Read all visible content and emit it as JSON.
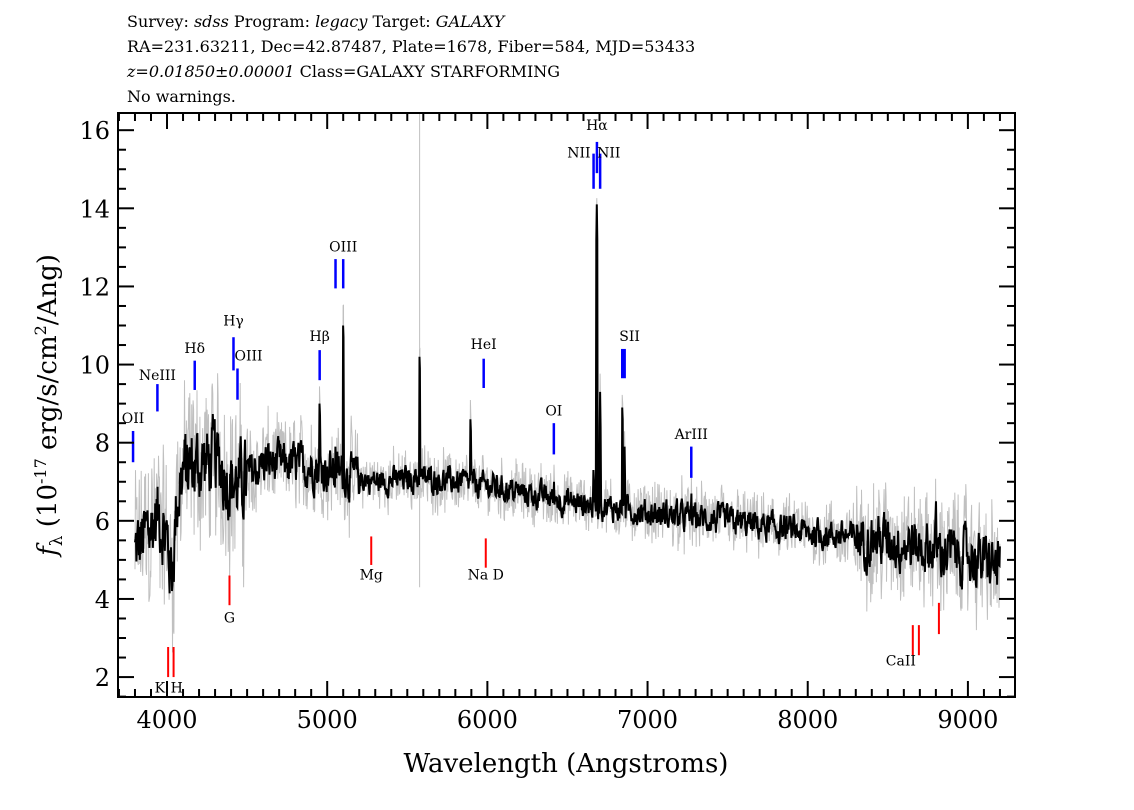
{
  "header": {
    "survey_label": "Survey:",
    "survey": "sdss",
    "program_label": "Program:",
    "program": "legacy",
    "target_label": "Target:",
    "target": "GALAXY",
    "line2": "RA=231.63211, Dec=42.87487, Plate=1678, Fiber=584, MJD=53433",
    "redshift": "z=0.01850±0.00001",
    "class": "Class=GALAXY STARFORMING",
    "warnings": "No warnings."
  },
  "chart_data": {
    "type": "line",
    "xlabel": "Wavelength (Angstroms)",
    "ylabel_main": "f",
    "ylabel_sub": "λ",
    "ylabel_rest_a": " (10",
    "ylabel_exp": "-17",
    "ylabel_rest_b": " erg/s/cm",
    "ylabel_exp2": "2",
    "ylabel_rest_c": "/Ang)",
    "xlim": [
      3694,
      9294
    ],
    "ylim": [
      1.49,
      16.44
    ],
    "xticks": [
      4000,
      5000,
      6000,
      7000,
      8000,
      9000
    ],
    "yticks": [
      2,
      4,
      6,
      8,
      10,
      12,
      14,
      16
    ],
    "wavelength_range": [
      3800,
      9200
    ],
    "sky_line": 5577,
    "colors": {
      "spectrum": "#000000",
      "error": "#c0c0c0",
      "emission": "#0000ff",
      "absorption": "#ff0000",
      "sky": "#c0c0c0"
    },
    "continuum": [
      [
        3800,
        5.2
      ],
      [
        3850,
        5.5
      ],
      [
        3950,
        6.2
      ],
      [
        4000,
        5.5
      ],
      [
        4030,
        4.6
      ],
      [
        4060,
        6.4
      ],
      [
        4100,
        7.3
      ],
      [
        4300,
        7.6
      ],
      [
        4400,
        7.0
      ],
      [
        4450,
        6.9
      ],
      [
        4600,
        7.5
      ],
      [
        4900,
        7.4
      ],
      [
        5100,
        7.2
      ],
      [
        5300,
        7.0
      ],
      [
        5600,
        7.1
      ],
      [
        6000,
        6.9
      ],
      [
        6500,
        6.5
      ],
      [
        7000,
        6.2
      ],
      [
        7500,
        6.0
      ],
      [
        8000,
        5.7
      ],
      [
        8500,
        5.5
      ],
      [
        9000,
        5.1
      ],
      [
        9200,
        4.8
      ]
    ],
    "emission_peaks": [
      [
        4953,
        9.3
      ],
      [
        5052,
        8.2
      ],
      [
        5100,
        11.3
      ],
      [
        5577,
        10.5
      ],
      [
        5895,
        8.9
      ],
      [
        6415,
        7.3
      ],
      [
        6663,
        7.6
      ],
      [
        6683,
        14.1
      ],
      [
        6704,
        9.3
      ],
      [
        6843,
        9.2
      ],
      [
        6857,
        7.9
      ],
      [
        7273,
        7.0
      ],
      [
        8800,
        6.8
      ]
    ],
    "lines": [
      {
        "label": "OII",
        "wave": 3788,
        "color": "emission",
        "tick": [
          7.5,
          8.3
        ],
        "text_y": 8.5,
        "align": "middle"
      },
      {
        "label": "NeIII",
        "wave": 3940,
        "color": "emission",
        "tick": [
          8.8,
          9.5
        ],
        "text_y": 9.6,
        "align": "middle"
      },
      {
        "label": "Hδ",
        "wave": 4173,
        "color": "emission",
        "tick": [
          9.35,
          10.1
        ],
        "text_y": 10.3,
        "align": "middle"
      },
      {
        "label": "Hγ",
        "wave": 4415,
        "color": "emission",
        "tick": [
          9.85,
          10.7
        ],
        "text_y": 11.0,
        "align": "middle"
      },
      {
        "label": "OIII",
        "wave": 4440,
        "color": "emission",
        "tick": [
          9.1,
          9.9
        ],
        "text_y": 10.1,
        "align": "start"
      },
      {
        "label": "Hβ",
        "wave": 4953,
        "color": "emission",
        "tick": [
          9.6,
          10.37
        ],
        "text_y": 10.6,
        "align": "middle"
      },
      {
        "label": "",
        "wave": 5052,
        "color": "emission",
        "tick": [
          11.95,
          12.7
        ],
        "text_y": 12.9,
        "align": "middle"
      },
      {
        "label": "OIII",
        "wave": 5100,
        "color": "emission",
        "tick": [
          11.95,
          12.7
        ],
        "text_y": 12.9,
        "align": "middle"
      },
      {
        "label": "HeI",
        "wave": 5977,
        "color": "emission",
        "tick": [
          9.4,
          10.15
        ],
        "text_y": 10.4,
        "align": "middle"
      },
      {
        "label": "OI",
        "wave": 6415,
        "color": "emission",
        "tick": [
          7.7,
          8.5
        ],
        "text_y": 8.7,
        "align": "middle"
      },
      {
        "label": "NII",
        "wave": 6663,
        "color": "emission",
        "tick": [
          14.5,
          15.4
        ],
        "text_y": 15.3,
        "align": "end"
      },
      {
        "label": "Hα",
        "wave": 6684,
        "color": "emission",
        "tick": [
          14.9,
          15.7
        ],
        "text_y": 16.0,
        "align": "middle"
      },
      {
        "label": "NII",
        "wave": 6704,
        "color": "emission",
        "tick": [
          14.5,
          15.4
        ],
        "text_y": 15.3,
        "align": "start"
      },
      {
        "label": "SII",
        "wave": 6842,
        "color": "emission",
        "tick": [
          9.65,
          10.4
        ],
        "text_y": 10.6,
        "align": "start"
      },
      {
        "label": "",
        "wave": 6857,
        "color": "emission",
        "tick": [
          9.65,
          10.4
        ],
        "text_y": 10.6,
        "align": "middle"
      },
      {
        "label": "ArIII",
        "wave": 7273,
        "color": "emission",
        "tick": [
          7.1,
          7.9
        ],
        "text_y": 8.1,
        "align": "middle"
      },
      {
        "label": "K",
        "wave": 4007,
        "color": "absorption",
        "tick": [
          2.0,
          2.77
        ],
        "text_y": 1.6,
        "align": "end"
      },
      {
        "label": "H",
        "wave": 4041,
        "color": "absorption",
        "tick": [
          2.0,
          2.77
        ],
        "text_y": 1.6,
        "align": "start"
      },
      {
        "label": "G",
        "wave": 4390,
        "color": "absorption",
        "tick": [
          3.84,
          4.6
        ],
        "text_y": 3.4,
        "align": "middle"
      },
      {
        "label": "Mg",
        "wave": 5275,
        "color": "absorption",
        "tick": [
          4.87,
          5.6
        ],
        "text_y": 4.5,
        "align": "middle"
      },
      {
        "label": "Na D",
        "wave": 5990,
        "color": "absorption",
        "tick": [
          4.8,
          5.55
        ],
        "text_y": 4.5,
        "align": "middle"
      },
      {
        "label": "",
        "wave": 8656,
        "color": "absorption",
        "tick": [
          2.56,
          3.33
        ],
        "text_y": 2.3,
        "align": "middle"
      },
      {
        "label": "CaII",
        "wave": 8694,
        "color": "absorption",
        "tick": [
          2.56,
          3.33
        ],
        "text_y": 2.3,
        "align": "end"
      },
      {
        "label": "",
        "wave": 8819,
        "color": "absorption",
        "tick": [
          3.1,
          3.9
        ],
        "text_y": 3.0,
        "align": "middle"
      }
    ]
  }
}
